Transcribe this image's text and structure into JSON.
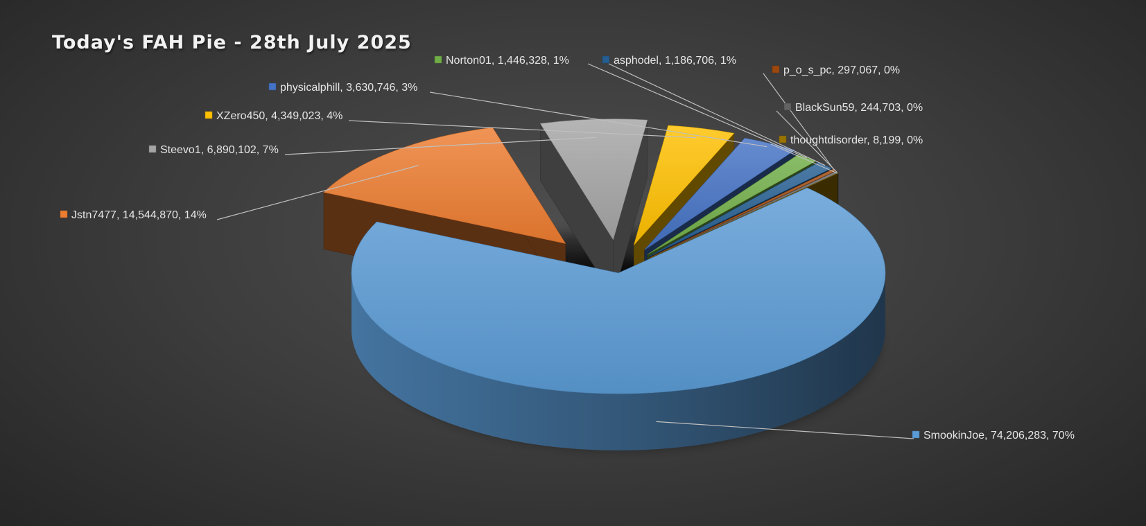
{
  "chart_data": {
    "type": "pie",
    "title": "Today's FAH Pie - 28th July 2025",
    "legend": "none",
    "data_labels": "category, value, percentage",
    "slices": [
      {
        "name": "SmookinJoe",
        "value": 74206283,
        "percent_label": "70%",
        "label": "SmookinJoe, 74,206,283, 70%",
        "color": "#5b9bd5"
      },
      {
        "name": "Jstn7477",
        "value": 14544870,
        "percent_label": "14%",
        "label": "Jstn7477, 14,544,870, 14%",
        "color": "#ed7d31"
      },
      {
        "name": "Steevo1",
        "value": 6890102,
        "percent_label": "7%",
        "label": "Steevo1, 6,890,102, 7%",
        "color": "#a5a5a5"
      },
      {
        "name": "XZero450",
        "value": 4349023,
        "percent_label": "4%",
        "label": "XZero450, 4,349,023, 4%",
        "color": "#ffc000"
      },
      {
        "name": "physicalphill",
        "value": 3630746,
        "percent_label": "3%",
        "label": "physicalphill, 3,630,746, 3%",
        "color": "#4472c4"
      },
      {
        "name": "Norton01",
        "value": 1446328,
        "percent_label": "1%",
        "label": "Norton01, 1,446,328, 1%",
        "color": "#70ad47"
      },
      {
        "name": "asphodel",
        "value": 1186706,
        "percent_label": "1%",
        "label": "asphodel, 1,186,706, 1%",
        "color": "#255e91"
      },
      {
        "name": "p_o_s_pc",
        "value": 297067,
        "percent_label": "0%",
        "label": "p_o_s_pc, 297,067, 0%",
        "color": "#9e480e"
      },
      {
        "name": "BlackSun59",
        "value": 244703,
        "percent_label": "0%",
        "label": "BlackSun59, 244,703, 0%",
        "color": "#636363"
      },
      {
        "name": "thoughtdisorder",
        "value": 8199,
        "percent_label": "0%",
        "label": "thoughtdisorder, 8,199, 0%",
        "color": "#997300"
      }
    ]
  }
}
